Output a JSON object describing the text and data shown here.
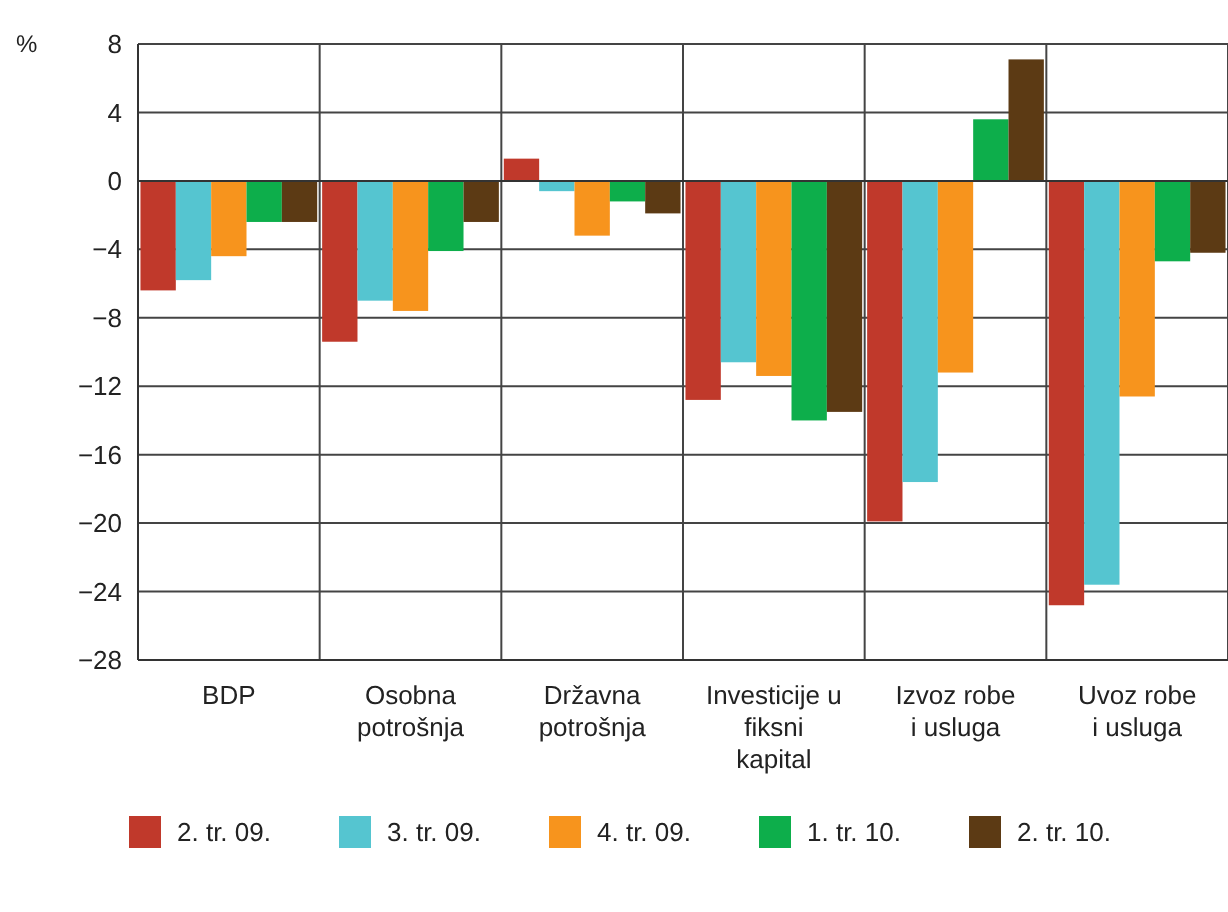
{
  "chart_data": {
    "type": "bar",
    "ylabel": "%",
    "categories": [
      "BDP",
      "Osobna\npotrošnja",
      "Državna\npotrošnja",
      "Investicije u\nfiksni\nkapital",
      "Izvoz robe\ni usluga",
      "Uvoz robe\ni usluga"
    ],
    "series": [
      {
        "name": "2. tr. 09.",
        "color": "#c0392b",
        "values": [
          -6.4,
          -9.4,
          1.3,
          -12.8,
          -19.9,
          -24.8
        ]
      },
      {
        "name": "3. tr. 09.",
        "color": "#55c5d0",
        "values": [
          -5.8,
          -7.0,
          -0.6,
          -10.6,
          -17.6,
          -23.6
        ]
      },
      {
        "name": "4. tr. 09.",
        "color": "#f7941d",
        "values": [
          -4.4,
          -7.6,
          -3.2,
          -11.4,
          -11.2,
          -12.6
        ]
      },
      {
        "name": "1. tr. 10.",
        "color": "#0dae4b",
        "values": [
          -2.4,
          -4.1,
          -1.2,
          -14.0,
          3.6,
          -4.7
        ]
      },
      {
        "name": "2. tr. 10.",
        "color": "#5c3a14",
        "values": [
          -2.4,
          -2.4,
          -1.9,
          -13.5,
          7.1,
          -4.2
        ]
      }
    ],
    "ylim": [
      -28,
      8
    ],
    "yticks": [
      {
        "value": -28,
        "label": "−28"
      },
      {
        "value": -24,
        "label": "−24"
      },
      {
        "value": -20,
        "label": "−20"
      },
      {
        "value": -16,
        "label": "−16"
      },
      {
        "value": -12,
        "label": "−12"
      },
      {
        "value": -8,
        "label": "−8"
      },
      {
        "value": -4,
        "label": "−4"
      },
      0,
      4,
      8
    ],
    "grid": true,
    "legend": "bottom"
  }
}
